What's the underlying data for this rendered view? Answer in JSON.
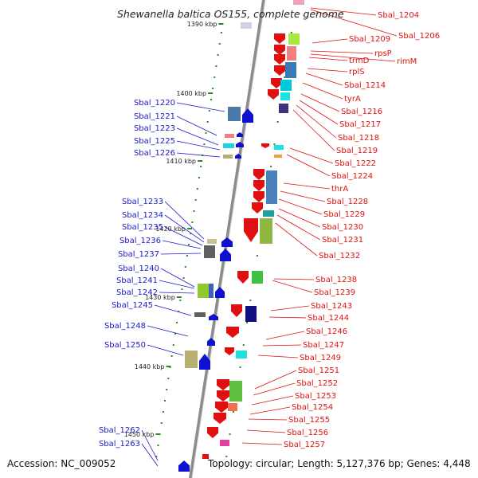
{
  "title": "Shewanella baltica OS155, complete genome",
  "accession": "Accession: NC_009052",
  "topology": "Topology: circular; Length: 5,127,376 bp; Genes: 4,448",
  "kbp_markers": [
    "1390 kbp",
    "1400 kbp",
    "1410 kbp",
    "1420 kbp",
    "1430 kbp",
    "1440 kbp",
    "1450 kbp"
  ],
  "colors": {
    "left_label": "#1a1ac8",
    "right_label": "#e01010",
    "axis": "#888888",
    "tick": "#2a8a2a"
  },
  "left_labels": [
    "Sbal_1220",
    "Sbal_1221",
    "Sbal_1223",
    "Sbal_1225",
    "Sbal_1226",
    "Sbal_1233",
    "Sbal_1234",
    "Sbal_1235",
    "Sbal_1236",
    "Sbal_1237",
    "Sbal_1240",
    "Sbal_1241",
    "Sbal_1242",
    "Sbal_1245",
    "Sbal_1248",
    "Sbal_1250",
    "Sbal_1262",
    "Sbal_1263"
  ],
  "right_labels": [
    "Sbal_1204",
    "Sbal_1206",
    "Sbal_1209",
    "rpsP",
    "rimM",
    "trmD",
    "rplS",
    "Sbal_1214",
    "tyrA",
    "Sbal_1216",
    "Sbal_1217",
    "Sbal_1218",
    "Sbal_1219",
    "Sbal_1222",
    "Sbal_1224",
    "thrA",
    "Sbal_1228",
    "Sbal_1229",
    "Sbal_1230",
    "Sbal_1231",
    "Sbal_1232",
    "Sbal_1238",
    "Sbal_1239",
    "Sbal_1243",
    "Sbal_1244",
    "Sbal_1246",
    "Sbal_1247",
    "Sbal_1249",
    "Sbal_1251",
    "Sbal_1252",
    "Sbal_1253",
    "Sbal_1254",
    "Sbal_1255",
    "Sbal_1256",
    "Sbal_1257"
  ]
}
